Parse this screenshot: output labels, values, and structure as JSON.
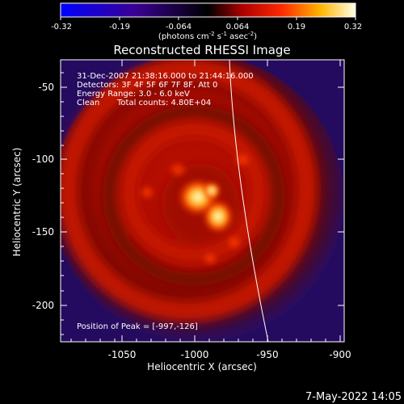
{
  "colorbar": {
    "ticks": [
      "-0.32",
      "-0.19",
      "-0.064",
      "0.064",
      "0.19",
      "0.32"
    ],
    "unit_parts": [
      "(photons cm",
      "-2",
      " s",
      "-1",
      " asec",
      "-2",
      ")"
    ]
  },
  "title": "Reconstructed RHESSI Image",
  "info": {
    "line1": "31-Dec-2007 21:38:16.000 to 21:44:16.000",
    "line2": "Detectors: 3F 4F 5F 6F 7F 8F, Att 0",
    "line3": "Energy Range: 3.0 - 6.0 keV",
    "line4_label": "Clean",
    "line4_counts": "Total counts: 4.80E+04"
  },
  "peak_text": "Position of Peak = [-997,-126]",
  "axes": {
    "x_ticks": [
      "-1050",
      "-1000",
      "-950",
      "-900"
    ],
    "y_ticks": [
      "-50",
      "-100",
      "-150",
      "-200"
    ],
    "xlabel": "Heliocentric X (arcsec)",
    "ylabel": "Heliocentric Y (arcsec)"
  },
  "footer_date": "7-May-2022 14:05",
  "colors": {
    "background": "#000000",
    "text": "#ffffff",
    "image_bg": "#2a0f78",
    "limb": "#ffffff"
  }
}
